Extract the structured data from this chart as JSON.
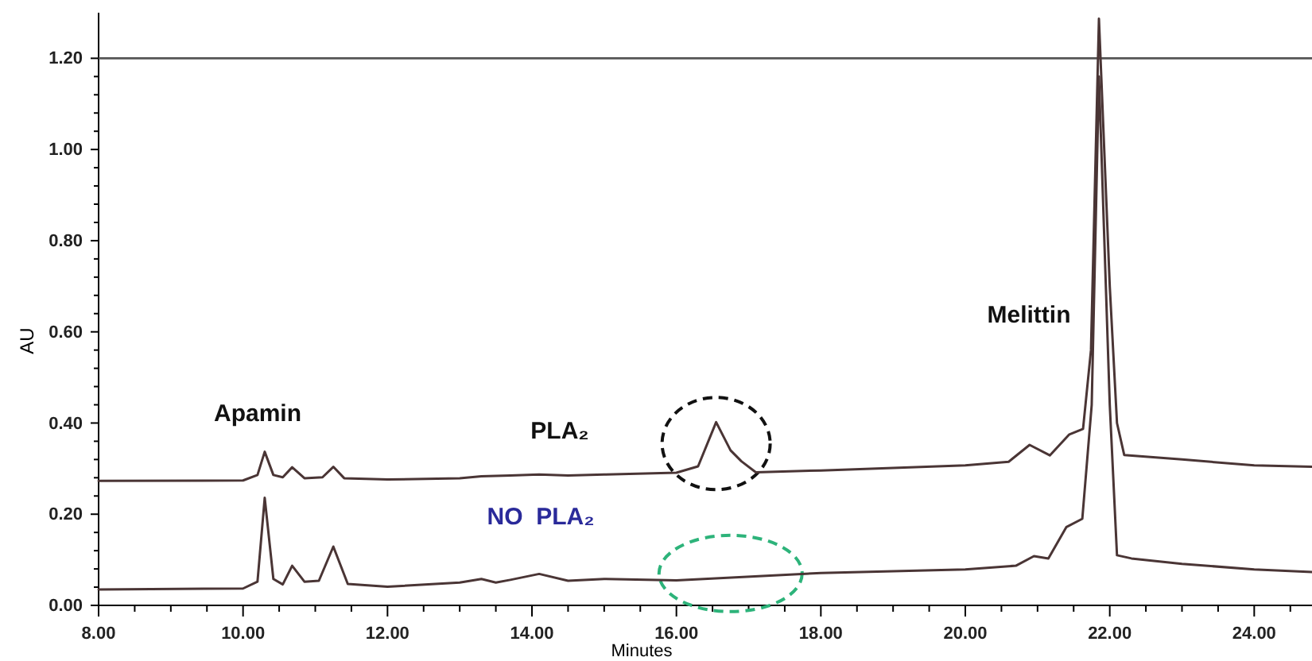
{
  "chart_data": {
    "type": "line",
    "xlabel": "Minutes",
    "ylabel": "AU",
    "xlim": [
      8,
      24.8
    ],
    "ylim": [
      0,
      1.3
    ],
    "xticks": [
      {
        "value": 8,
        "label": "8.00"
      },
      {
        "value": 8.5,
        "label": null
      },
      {
        "value": 9,
        "label": null
      },
      {
        "value": 9.5,
        "label": null
      },
      {
        "value": 10,
        "label": "10.00"
      },
      {
        "value": 10.5,
        "label": null
      },
      {
        "value": 11,
        "label": null
      },
      {
        "value": 11.5,
        "label": null
      },
      {
        "value": 12,
        "label": "12.00"
      },
      {
        "value": 12.5,
        "label": null
      },
      {
        "value": 13,
        "label": null
      },
      {
        "value": 13.5,
        "label": null
      },
      {
        "value": 14,
        "label": "14.00"
      },
      {
        "value": 14.5,
        "label": null
      },
      {
        "value": 15,
        "label": null
      },
      {
        "value": 15.5,
        "label": null
      },
      {
        "value": 16,
        "label": "16.00"
      },
      {
        "value": 16.5,
        "label": null
      },
      {
        "value": 17,
        "label": null
      },
      {
        "value": 17.5,
        "label": null
      },
      {
        "value": 18,
        "label": "18.00"
      },
      {
        "value": 18.5,
        "label": null
      },
      {
        "value": 19,
        "label": null
      },
      {
        "value": 19.5,
        "label": null
      },
      {
        "value": 20,
        "label": "20.00"
      },
      {
        "value": 20.5,
        "label": null
      },
      {
        "value": 21,
        "label": null
      },
      {
        "value": 21.5,
        "label": null
      },
      {
        "value": 22,
        "label": "22.00"
      },
      {
        "value": 22.5,
        "label": null
      },
      {
        "value": 23,
        "label": null
      },
      {
        "value": 23.5,
        "label": null
      },
      {
        "value": 24,
        "label": "24.00"
      },
      {
        "value": 24.5,
        "label": null
      }
    ],
    "yticks": [
      {
        "value": 0,
        "label": "0.00"
      },
      {
        "value": 0.04,
        "label": null
      },
      {
        "value": 0.08,
        "label": null
      },
      {
        "value": 0.12,
        "label": null
      },
      {
        "value": 0.16,
        "label": null
      },
      {
        "value": 0.2,
        "label": "0.20"
      },
      {
        "value": 0.24,
        "label": null
      },
      {
        "value": 0.28,
        "label": null
      },
      {
        "value": 0.32,
        "label": null
      },
      {
        "value": 0.36,
        "label": null
      },
      {
        "value": 0.4,
        "label": "0.40"
      },
      {
        "value": 0.44,
        "label": null
      },
      {
        "value": 0.48,
        "label": null
      },
      {
        "value": 0.52,
        "label": null
      },
      {
        "value": 0.56,
        "label": null
      },
      {
        "value": 0.6,
        "label": "0.60"
      },
      {
        "value": 0.64,
        "label": null
      },
      {
        "value": 0.68,
        "label": null
      },
      {
        "value": 0.72,
        "label": null
      },
      {
        "value": 0.76,
        "label": null
      },
      {
        "value": 0.8,
        "label": "0.80"
      },
      {
        "value": 0.84,
        "label": null
      },
      {
        "value": 0.88,
        "label": null
      },
      {
        "value": 0.92,
        "label": null
      },
      {
        "value": 0.96,
        "label": null
      },
      {
        "value": 1.0,
        "label": "1.00"
      },
      {
        "value": 1.04,
        "label": null
      },
      {
        "value": 1.08,
        "label": null
      },
      {
        "value": 1.12,
        "label": null
      },
      {
        "value": 1.16,
        "label": null
      },
      {
        "value": 1.2,
        "label": "1.20"
      }
    ],
    "ref_lines": [
      {
        "axis": "y",
        "value": 1.2,
        "label": null,
        "color": "#555555"
      }
    ],
    "grid": false,
    "marker": "none",
    "line_style": "solid",
    "series": [
      {
        "color": "#4a3535",
        "x": [
          8,
          10,
          10.2,
          10.3,
          10.42,
          10.55,
          10.68,
          10.85,
          11.1,
          11.25,
          11.4,
          12,
          13,
          13.3,
          13.7,
          14.1,
          14.5,
          15,
          16,
          16.3,
          16.55,
          16.75,
          16.9,
          17.1,
          18,
          20,
          20.6,
          20.89,
          21.17,
          21.44,
          21.63,
          21.74,
          21.85,
          22,
          22.1,
          22.2,
          23,
          24,
          24.8
        ],
        "values": [
          0.273,
          0.274,
          0.286,
          0.337,
          0.286,
          0.281,
          0.303,
          0.279,
          0.281,
          0.304,
          0.279,
          0.276,
          0.279,
          0.283,
          0.285,
          0.287,
          0.285,
          0.287,
          0.291,
          0.305,
          0.402,
          0.34,
          0.316,
          0.292,
          0.296,
          0.307,
          0.315,
          0.352,
          0.329,
          0.375,
          0.387,
          0.56,
          1.287,
          0.7,
          0.4,
          0.33,
          0.32,
          0.307,
          0.304
        ]
      },
      {
        "color": "#4a3535",
        "x": [
          8,
          10,
          10.2,
          10.3,
          10.42,
          10.55,
          10.68,
          10.85,
          11.05,
          11.25,
          11.45,
          12,
          13,
          13.3,
          13.5,
          13.7,
          14.1,
          14.5,
          15,
          16,
          18,
          20,
          20.7,
          20.95,
          21.15,
          21.4,
          21.62,
          21.75,
          21.85,
          22,
          22.1,
          22.3,
          23,
          24,
          24.8
        ],
        "values": [
          0.035,
          0.037,
          0.052,
          0.236,
          0.058,
          0.046,
          0.087,
          0.052,
          0.054,
          0.129,
          0.047,
          0.041,
          0.05,
          0.058,
          0.05,
          0.056,
          0.069,
          0.054,
          0.058,
          0.055,
          0.071,
          0.079,
          0.087,
          0.108,
          0.103,
          0.172,
          0.19,
          0.44,
          1.16,
          0.44,
          0.11,
          0.103,
          0.091,
          0.079,
          0.073
        ]
      }
    ],
    "annotations": [
      "Apamin",
      "PLA₂",
      "NO  PLA₂",
      "Melittin"
    ]
  }
}
